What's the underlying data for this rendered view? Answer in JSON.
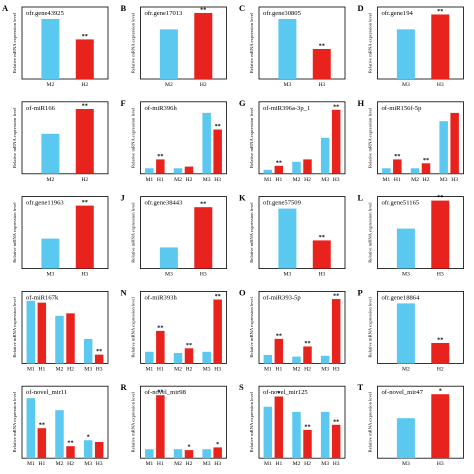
{
  "figure": {
    "ylabel_text": "Relative mRNA expression level",
    "colors": {
      "blue": "#5bc8f0",
      "red": "#e8231e",
      "axis": "#000000"
    }
  },
  "chart_data": [
    {
      "type": "bar",
      "panel_letter": "A",
      "title": "ofr.gene43925",
      "categories": [
        "M2",
        "H2"
      ],
      "values": [
        1.0,
        0.66
      ],
      "colors": [
        "blue",
        "red"
      ],
      "sig": [
        "",
        "**"
      ],
      "ylim": [
        0,
        1.2
      ]
    },
    {
      "type": "bar",
      "panel_letter": "B",
      "title": "ofr.gene17013",
      "categories": [
        "M2",
        "H2"
      ],
      "values": [
        1.0,
        1.33
      ],
      "colors": [
        "blue",
        "red"
      ],
      "sig": [
        "",
        "**"
      ],
      "ylim": [
        0,
        1.45
      ]
    },
    {
      "type": "bar",
      "panel_letter": "C",
      "title": "ofr.gene30805",
      "categories": [
        "M3",
        "H3"
      ],
      "values": [
        1.0,
        0.5
      ],
      "colors": [
        "blue",
        "red"
      ],
      "sig": [
        "",
        "**"
      ],
      "ylim": [
        0,
        1.2
      ]
    },
    {
      "type": "bar",
      "panel_letter": "D",
      "title": "ofr.gene194",
      "categories": [
        "M3",
        "H3"
      ],
      "values": [
        1.0,
        1.3
      ],
      "colors": [
        "blue",
        "red"
      ],
      "sig": [
        "",
        "**"
      ],
      "ylim": [
        0,
        1.45
      ]
    },
    {
      "type": "bar",
      "panel_letter": "",
      "title": "of-miR166",
      "categories": [
        "M2",
        "H2"
      ],
      "values": [
        1.0,
        1.62
      ],
      "colors": [
        "blue",
        "red"
      ],
      "sig": [
        "",
        "**"
      ],
      "ylim": [
        0,
        1.8
      ]
    },
    {
      "type": "bar",
      "panel_letter": "F",
      "title": "of-miR396h",
      "categories": [
        "M1",
        "H1",
        "M2",
        "H2",
        "M3",
        "H3"
      ],
      "values": [
        1.0,
        2.6,
        1.0,
        1.3,
        11.0,
        8.0
      ],
      "colors": [
        "blue",
        "red",
        "blue",
        "red",
        "blue",
        "red"
      ],
      "sig": [
        "",
        "**",
        "",
        "",
        "",
        "**"
      ],
      "ylim": [
        0,
        13
      ]
    },
    {
      "type": "bar",
      "panel_letter": "G",
      "title": "of-miR396a-3p_1",
      "categories": [
        "M1",
        "H1",
        "M2",
        "H2",
        "M3",
        "H3"
      ],
      "values": [
        1.0,
        2.0,
        3.0,
        3.6,
        9.0,
        16.0
      ],
      "colors": [
        "blue",
        "red",
        "blue",
        "red",
        "blue",
        "red"
      ],
      "sig": [
        "",
        "**",
        "",
        "",
        "",
        "**"
      ],
      "ylim": [
        0,
        18
      ]
    },
    {
      "type": "bar",
      "panel_letter": "H",
      "title": "of-miR156f-5p",
      "categories": [
        "M1",
        "H1",
        "M2",
        "H2",
        "M3",
        "H3"
      ],
      "values": [
        1.0,
        2.6,
        1.0,
        1.9,
        9.5,
        11.0
      ],
      "colors": [
        "blue",
        "red",
        "blue",
        "red",
        "blue",
        "red"
      ],
      "sig": [
        "",
        "**",
        "",
        "**",
        "",
        ""
      ],
      "ylim": [
        0,
        13
      ]
    },
    {
      "type": "bar",
      "panel_letter": "",
      "title": "ofr.gene11963",
      "categories": [
        "M3",
        "H3"
      ],
      "values": [
        1.0,
        2.1
      ],
      "colors": [
        "blue",
        "red"
      ],
      "sig": [
        "",
        "**"
      ],
      "ylim": [
        0,
        2.4
      ]
    },
    {
      "type": "bar",
      "panel_letter": "J",
      "title": "ofr.gene38443",
      "categories": [
        "M3",
        "H3"
      ],
      "values": [
        1.0,
        2.9
      ],
      "colors": [
        "blue",
        "red"
      ],
      "sig": [
        "",
        "**"
      ],
      "ylim": [
        0,
        3.4
      ]
    },
    {
      "type": "bar",
      "panel_letter": "K",
      "title": "ofr.gene57509",
      "categories": [
        "M3",
        "H3"
      ],
      "values": [
        1.0,
        0.47
      ],
      "colors": [
        "blue",
        "red"
      ],
      "sig": [
        "",
        "**"
      ],
      "ylim": [
        0,
        1.2
      ]
    },
    {
      "type": "bar",
      "panel_letter": "L",
      "title": "ofr.gene51165",
      "categories": [
        "M3",
        "H3"
      ],
      "values": [
        1.0,
        1.7
      ],
      "colors": [
        "blue",
        "red"
      ],
      "sig": [
        "",
        "**"
      ],
      "ylim": [
        0,
        1.8
      ]
    },
    {
      "type": "bar",
      "panel_letter": "",
      "title": "of-miR167k",
      "categories": [
        "M1",
        "H1",
        "M2",
        "H2",
        "M3",
        "H3"
      ],
      "values": [
        1.0,
        0.97,
        0.76,
        0.8,
        0.39,
        0.14
      ],
      "colors": [
        "blue",
        "red",
        "blue",
        "red",
        "blue",
        "red"
      ],
      "sig": [
        "",
        "",
        "",
        "",
        "",
        "**"
      ],
      "ylim": [
        0,
        1.15
      ]
    },
    {
      "type": "bar",
      "panel_letter": "N",
      "title": "of-miR393h",
      "categories": [
        "M1",
        "H1",
        "M2",
        "H2",
        "M3",
        "H3"
      ],
      "values": [
        1.0,
        2.8,
        0.9,
        1.3,
        1.0,
        5.5
      ],
      "colors": [
        "blue",
        "red",
        "blue",
        "red",
        "blue",
        "red"
      ],
      "sig": [
        "",
        "**",
        "",
        "**",
        "",
        "**"
      ],
      "ylim": [
        0,
        6.2
      ]
    },
    {
      "type": "bar",
      "panel_letter": "O",
      "title": "of-miR393-5p",
      "categories": [
        "M1",
        "H1",
        "M2",
        "H2",
        "M3",
        "H3"
      ],
      "values": [
        1.0,
        2.9,
        0.8,
        2.0,
        0.9,
        7.6
      ],
      "colors": [
        "blue",
        "red",
        "blue",
        "red",
        "blue",
        "red"
      ],
      "sig": [
        "",
        "**",
        "",
        "**",
        "",
        "**"
      ],
      "ylim": [
        0,
        8.5
      ]
    },
    {
      "type": "bar",
      "panel_letter": "P",
      "title": "ofr.gene18864",
      "categories": [
        "M2",
        "H2"
      ],
      "values": [
        1.0,
        0.34
      ],
      "colors": [
        "blue",
        "red"
      ],
      "sig": [
        "",
        "**"
      ],
      "ylim": [
        0,
        1.2
      ]
    },
    {
      "type": "bar",
      "panel_letter": "",
      "title": "of-novel_mir11",
      "categories": [
        "M1",
        "H1",
        "M2",
        "H2",
        "M3",
        "H3"
      ],
      "values": [
        1.0,
        0.5,
        0.8,
        0.2,
        0.3,
        0.27
      ],
      "colors": [
        "blue",
        "red",
        "blue",
        "red",
        "blue",
        "red"
      ],
      "sig": [
        "",
        "**",
        "",
        "**",
        "*",
        ""
      ],
      "ylim": [
        0,
        1.2
      ]
    },
    {
      "type": "bar",
      "panel_letter": "R",
      "title": "of-novel_mir98",
      "categories": [
        "M1",
        "H1",
        "M2",
        "H2",
        "M3",
        "H3"
      ],
      "values": [
        1.0,
        7.0,
        1.0,
        0.9,
        1.0,
        1.2
      ],
      "colors": [
        "blue",
        "red",
        "blue",
        "red",
        "blue",
        "red"
      ],
      "sig": [
        "",
        "**",
        "",
        "*",
        "",
        "*"
      ],
      "ylim": [
        0,
        8
      ]
    },
    {
      "type": "bar",
      "panel_letter": "S",
      "title": "of-novel_mir125",
      "categories": [
        "M1",
        "H1",
        "M2",
        "H2",
        "M3",
        "H3"
      ],
      "values": [
        1.0,
        1.2,
        0.9,
        0.55,
        0.9,
        0.65
      ],
      "colors": [
        "blue",
        "red",
        "blue",
        "red",
        "blue",
        "red"
      ],
      "sig": [
        "",
        "*",
        "",
        "**",
        "",
        "**"
      ],
      "ylim": [
        0,
        1.4
      ]
    },
    {
      "type": "bar",
      "panel_letter": "T",
      "title": "of-novel_mir47",
      "categories": [
        "M3",
        "H3"
      ],
      "values": [
        1.0,
        1.6
      ],
      "colors": [
        "blue",
        "red"
      ],
      "sig": [
        "",
        "*"
      ],
      "ylim": [
        0,
        1.8
      ]
    }
  ]
}
